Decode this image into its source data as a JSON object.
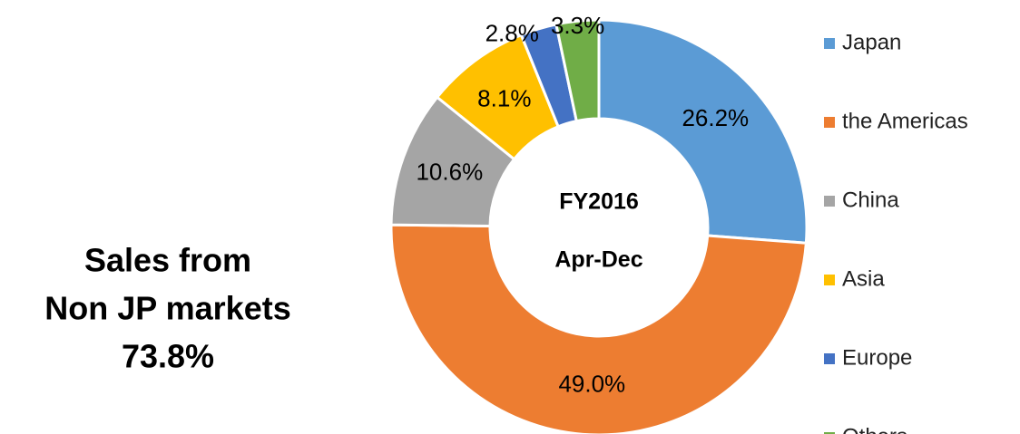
{
  "chart_data": {
    "type": "donut",
    "center_text": [
      "FY2016",
      "Apr-Dec"
    ],
    "annotation": [
      "Sales from",
      "Non JP markets",
      "73.8%"
    ],
    "categories": [
      "Japan",
      "the Americas",
      "China",
      "Asia",
      "Europe",
      "Others"
    ],
    "values": [
      26.2,
      49.0,
      10.6,
      8.1,
      2.8,
      3.3
    ],
    "value_labels": [
      "26.2%",
      "49.0%",
      "10.6%",
      "8.1%",
      "2.8%",
      "3.3%"
    ],
    "colors": [
      "#5b9bd5",
      "#ed7d31",
      "#a5a5a5",
      "#ffc000",
      "#4472c4",
      "#70ad47"
    ],
    "legend": "right"
  }
}
